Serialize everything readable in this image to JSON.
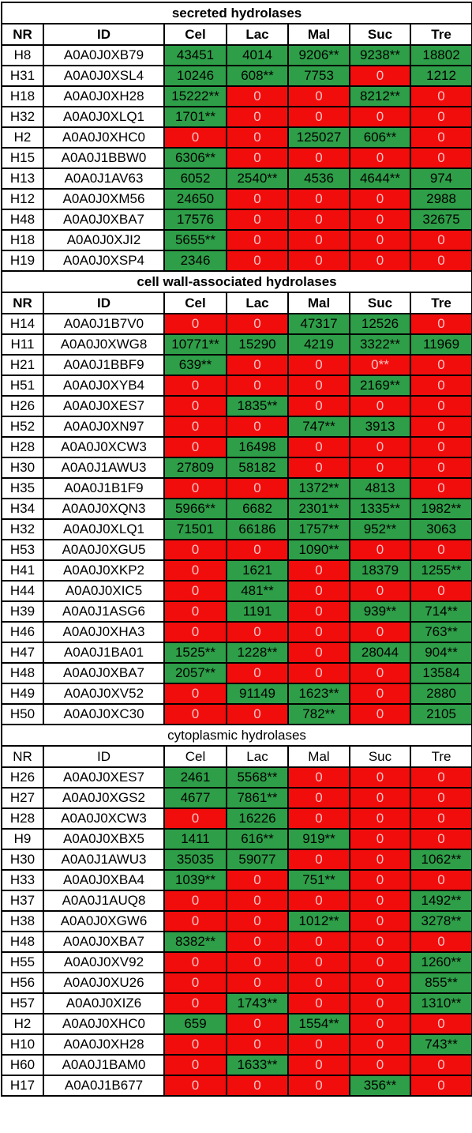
{
  "columns": [
    "NR",
    "ID",
    "Cel",
    "Lac",
    "Mal",
    "Suc",
    "Tre"
  ],
  "colors": {
    "positive": "#2e9e48",
    "negative": "#f20d0d",
    "zero_text": "#f8c2c2"
  },
  "sections": [
    {
      "title": "secreted hydrolases",
      "bold_header": true,
      "rows": [
        {
          "nr": "H8",
          "id": "A0A0J0XB79",
          "values": [
            "43451",
            "4014",
            "9206**",
            "9238**",
            "18802"
          ]
        },
        {
          "nr": "H31",
          "id": "A0A0J0XSL4",
          "values": [
            "10246",
            "608**",
            "7753",
            "0",
            "1212"
          ]
        },
        {
          "nr": "H18",
          "id": "A0A0J0XH28",
          "values": [
            "15222**",
            "0",
            "0",
            "8212**",
            "0"
          ]
        },
        {
          "nr": "H32",
          "id": "A0A0J0XLQ1",
          "values": [
            "1701**",
            "0",
            "0",
            "0",
            "0"
          ]
        },
        {
          "nr": "H2",
          "id": "A0A0J0XHC0",
          "values": [
            "0",
            "0",
            "125027",
            "606**",
            "0"
          ]
        },
        {
          "nr": "H15",
          "id": "A0A0J1BBW0",
          "values": [
            "6306**",
            "0",
            "0",
            "0",
            "0"
          ]
        },
        {
          "nr": "H13",
          "id": "A0A0J1AV63",
          "values": [
            "6052",
            "2540**",
            "4536",
            "4644**",
            "974"
          ]
        },
        {
          "nr": "H12",
          "id": "A0A0J0XM56",
          "values": [
            "24650",
            "0",
            "0",
            "0",
            "2988"
          ]
        },
        {
          "nr": "H48",
          "id": "A0A0J0XBA7",
          "values": [
            "17576",
            "0",
            "0",
            "0",
            "32675"
          ]
        },
        {
          "nr": "H18",
          "id": "A0A0J0XJI2",
          "values": [
            "5655**",
            "0",
            "0",
            "0",
            "0"
          ]
        },
        {
          "nr": "H19",
          "id": "A0A0J0XSP4",
          "values": [
            "2346",
            "0",
            "0",
            "0",
            "0"
          ]
        }
      ]
    },
    {
      "title": "cell wall-associated hydrolases",
      "bold_header": true,
      "rows": [
        {
          "nr": "H14",
          "id": "A0A0J1B7V0",
          "values": [
            "0",
            "0",
            "47317",
            "12526",
            "0"
          ]
        },
        {
          "nr": "H11",
          "id": "A0A0J0XWG8",
          "values": [
            "10771**",
            "15290",
            "4219",
            "3322**",
            "11969"
          ]
        },
        {
          "nr": "H21",
          "id": "A0A0J1BBF9",
          "values": [
            "639**",
            "0",
            "0",
            "0**",
            "0"
          ]
        },
        {
          "nr": "H51",
          "id": "A0A0J0XYB4",
          "values": [
            "0",
            "0",
            "0",
            "2169**",
            "0"
          ]
        },
        {
          "nr": "H26",
          "id": "A0A0J0XES7",
          "values": [
            "0",
            "1835**",
            "0",
            "0",
            "0"
          ]
        },
        {
          "nr": "H52",
          "id": "A0A0J0XN97",
          "values": [
            "0",
            "0",
            "747**",
            "3913",
            "0"
          ]
        },
        {
          "nr": "H28",
          "id": "A0A0J0XCW3",
          "values": [
            "0",
            "16498",
            "0",
            "0",
            "0"
          ]
        },
        {
          "nr": "H30",
          "id": "A0A0J1AWU3",
          "values": [
            "27809",
            "58182",
            "0",
            "0",
            "0"
          ]
        },
        {
          "nr": "H35",
          "id": "A0A0J1B1F9",
          "values": [
            "0",
            "0",
            "1372**",
            "4813",
            "0"
          ]
        },
        {
          "nr": "H34",
          "id": "A0A0J0XQN3",
          "values": [
            "5966**",
            "6682",
            "2301**",
            "1335**",
            "1982**"
          ]
        },
        {
          "nr": "H32",
          "id": "A0A0J0XLQ1",
          "values": [
            "71501",
            "66186",
            "1757**",
            "952**",
            "3063"
          ]
        },
        {
          "nr": "H53",
          "id": "A0A0J0XGU5",
          "values": [
            "0",
            "0",
            "1090**",
            "0",
            "0"
          ]
        },
        {
          "nr": "H41",
          "id": "A0A0J0XKP2",
          "values": [
            "0",
            "1621",
            "0",
            "18379",
            "1255**"
          ]
        },
        {
          "nr": "H44",
          "id": "A0A0J0XIC5",
          "values": [
            "0",
            "481**",
            "0",
            "0",
            "0"
          ]
        },
        {
          "nr": "H39",
          "id": "A0A0J1ASG6",
          "values": [
            "0",
            "1191",
            "0",
            "939**",
            "714**"
          ]
        },
        {
          "nr": "H46",
          "id": "A0A0J0XHA3",
          "values": [
            "0",
            "0",
            "0",
            "0",
            "763**"
          ]
        },
        {
          "nr": "H47",
          "id": "A0A0J1BA01",
          "values": [
            "1525**",
            "1228**",
            "0",
            "28044",
            "904**"
          ]
        },
        {
          "nr": "H48",
          "id": "A0A0J0XBA7",
          "values": [
            "2057**",
            "0",
            "0",
            "0",
            "13584"
          ]
        },
        {
          "nr": "H49",
          "id": "A0A0J0XV52",
          "values": [
            "0",
            "91149",
            "1623**",
            "0",
            "2880"
          ]
        },
        {
          "nr": "H50",
          "id": "A0A0J0XC30",
          "values": [
            "0",
            "0",
            "782**",
            "0",
            "2105"
          ]
        }
      ]
    },
    {
      "title": "cytoplasmic hydrolases",
      "bold_header": false,
      "rows": [
        {
          "nr": "H26",
          "id": "A0A0J0XES7",
          "values": [
            "2461",
            "5568**",
            "0",
            "0",
            "0"
          ]
        },
        {
          "nr": "H27",
          "id": "A0A0J0XGS2",
          "values": [
            "4677",
            "7861**",
            "0",
            "0",
            "0"
          ]
        },
        {
          "nr": "H28",
          "id": "A0A0J0XCW3",
          "values": [
            "0",
            "16226",
            "0",
            "0",
            "0"
          ]
        },
        {
          "nr": "H9",
          "id": "A0A0J0XBX5",
          "values": [
            "1411",
            "616**",
            "919**",
            "0",
            "0"
          ]
        },
        {
          "nr": "H30",
          "id": "A0A0J1AWU3",
          "values": [
            "35035",
            "59077",
            "0",
            "0",
            "1062**"
          ]
        },
        {
          "nr": "H33",
          "id": "A0A0J0XBA4",
          "values": [
            "1039**",
            "0",
            "751**",
            "0",
            "0"
          ]
        },
        {
          "nr": "H37",
          "id": "A0A0J1AUQ8",
          "values": [
            "0",
            "0",
            "0",
            "0",
            "1492**"
          ]
        },
        {
          "nr": "H38",
          "id": "A0A0J0XGW6",
          "values": [
            "0",
            "0",
            "1012**",
            "0",
            "3278**"
          ]
        },
        {
          "nr": "H48",
          "id": "A0A0J0XBA7",
          "values": [
            "8382**",
            "0",
            "0",
            "0",
            "0"
          ]
        },
        {
          "nr": "H55",
          "id": "A0A0J0XV92",
          "values": [
            "0",
            "0",
            "0",
            "0",
            "1260**"
          ]
        },
        {
          "nr": "H56",
          "id": "A0A0J0XU26",
          "values": [
            "0",
            "0",
            "0",
            "0",
            "855**"
          ]
        },
        {
          "nr": "H57",
          "id": "A0A0J0XIZ6",
          "values": [
            "0",
            "1743**",
            "0",
            "0",
            "1310**"
          ]
        },
        {
          "nr": "H2",
          "id": "A0A0J0XHC0",
          "values": [
            "659",
            "0",
            "1554**",
            "0",
            "0"
          ]
        },
        {
          "nr": "H10",
          "id": "A0A0J0XH28",
          "values": [
            "0",
            "0",
            "0",
            "0",
            "743**"
          ]
        },
        {
          "nr": "H60",
          "id": "A0A0J1BAM0",
          "values": [
            "0",
            "1633**",
            "0",
            "0",
            "0"
          ]
        },
        {
          "nr": "H17",
          "id": "A0A0J1B677",
          "values": [
            "0",
            "0",
            "0",
            "356**",
            "0"
          ]
        }
      ]
    }
  ]
}
